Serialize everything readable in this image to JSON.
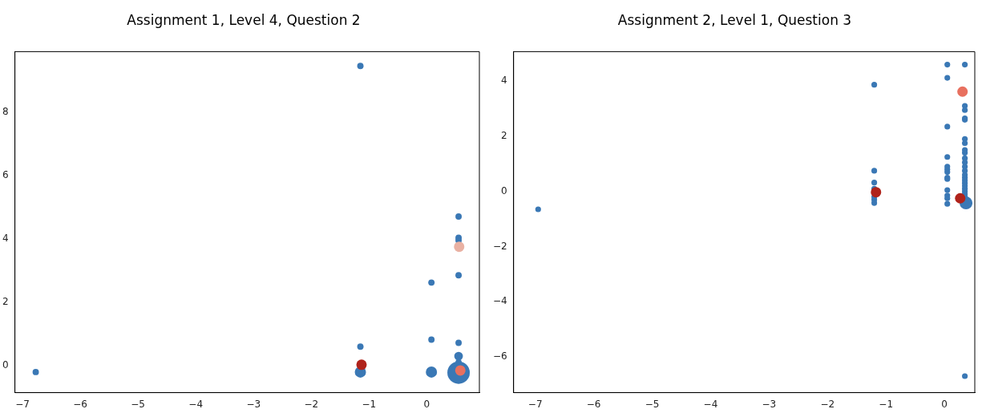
{
  "chart_data": [
    {
      "type": "scatter",
      "title": "Assignment 1, Level 4, Question 2",
      "grid": false,
      "legend": false,
      "marker": "circle",
      "xlim": [
        -7.13,
        0.91
      ],
      "ylim": [
        -0.85,
        9.9
      ],
      "xticks": [
        {
          "value": -7,
          "label": "−7"
        },
        {
          "value": -6,
          "label": "−6"
        },
        {
          "value": -5,
          "label": "−5"
        },
        {
          "value": -4,
          "label": "−4"
        },
        {
          "value": -3,
          "label": "−3"
        },
        {
          "value": -2,
          "label": "−2"
        },
        {
          "value": -1,
          "label": "−1"
        },
        0
      ],
      "yticks": [
        0,
        2,
        4,
        6,
        8
      ],
      "series": [
        {
          "type": "bubble",
          "color": "#3a78b5",
          "x": [
            -6.77,
            -1.15,
            -1.15,
            -1.15,
            0.08,
            0.08,
            0.08,
            0.55,
            0.55,
            0.55,
            0.55,
            0.55,
            0.55,
            0.55,
            0.55
          ],
          "values": [
            -0.2,
            9.45,
            0.6,
            -0.2,
            2.62,
            0.82,
            -0.2,
            4.7,
            4.03,
            3.95,
            2.85,
            0.72,
            0.3,
            0.1,
            -0.22
          ],
          "sizes": [
            0.08,
            0.08,
            0.08,
            0.25,
            0.08,
            0.08,
            0.25,
            0.08,
            0.08,
            0.08,
            0.08,
            0.08,
            0.15,
            0.08,
            1
          ]
        },
        {
          "type": "scatter",
          "x": [
            -1.13,
            0.56,
            0.58
          ],
          "values": [
            0.03,
            3.75,
            -0.15
          ],
          "colors": [
            "#b0231b",
            "#e9b1a3",
            "#e8705f"
          ]
        }
      ]
    },
    {
      "type": "scatter",
      "title": "Assignment 2, Level 1, Question 3",
      "grid": false,
      "legend": false,
      "marker": "circle",
      "xlim": [
        -7.37,
        0.52
      ],
      "ylim": [
        -7.3,
        5.07
      ],
      "xticks": [
        {
          "value": -7,
          "label": "−7"
        },
        {
          "value": -6,
          "label": "−6"
        },
        {
          "value": -5,
          "label": "−5"
        },
        {
          "value": -4,
          "label": "−4"
        },
        {
          "value": -3,
          "label": "−3"
        },
        {
          "value": -2,
          "label": "−2"
        },
        {
          "value": -1,
          "label": "−1"
        },
        0
      ],
      "yticks": [
        {
          "value": -6,
          "label": "−6"
        },
        {
          "value": -4,
          "label": "−4"
        },
        {
          "value": -2,
          "label": "−2"
        },
        0,
        2,
        4
      ],
      "series": [
        {
          "type": "bubble",
          "color": "#3a78b5",
          "x": [
            0.37,
            -6.95,
            -1.2,
            -1.2,
            -1.2,
            -1.2,
            -1.2,
            -1.2,
            -1.2,
            0.05,
            0.05,
            0.05,
            0.05,
            0.05,
            0.05,
            0.05,
            0.05,
            0.05,
            0.05,
            0.05,
            0.05,
            0.05,
            0.35,
            0.35,
            0.35,
            0.35,
            0.35,
            0.35,
            0.35,
            0.35,
            0.35,
            0.35,
            0.35,
            0.35,
            0.35,
            0.35,
            0.35,
            0.35,
            0.35,
            0.35,
            0.35,
            0.35,
            0.35,
            0.35,
            0.35
          ],
          "values": [
            -0.42,
            -0.65,
            3.87,
            0.75,
            0.32,
            0.1,
            -0.2,
            -0.3,
            -0.42,
            4.6,
            4.12,
            2.35,
            1.25,
            0.9,
            0.8,
            0.7,
            0.5,
            0.45,
            0.05,
            -0.15,
            -0.25,
            -0.45,
            4.6,
            3.1,
            2.95,
            2.65,
            2.6,
            1.9,
            1.75,
            1.5,
            1.4,
            1.2,
            1.05,
            0.9,
            0.75,
            0.6,
            0.5,
            0.4,
            0.3,
            0.2,
            0.1,
            0,
            -0.1,
            -0.2,
            -6.7
          ],
          "sizes": [
            1,
            0.2,
            0.2,
            0.2,
            0.2,
            0.2,
            0.2,
            0.2,
            0.2,
            0.2,
            0.2,
            0.2,
            0.2,
            0.2,
            0.2,
            0.2,
            0.2,
            0.2,
            0.2,
            0.2,
            0.2,
            0.2,
            0.2,
            0.2,
            0.2,
            0.2,
            0.2,
            0.2,
            0.2,
            0.2,
            0.2,
            0.2,
            0.2,
            0.2,
            0.2,
            0.2,
            0.2,
            0.2,
            0.2,
            0.2,
            0.2,
            0.2,
            0.2,
            0.2,
            0.2
          ]
        },
        {
          "type": "scatter",
          "x": [
            -1.17,
            0.27,
            0.31
          ],
          "values": [
            -0.03,
            -0.25,
            3.62
          ],
          "colors": [
            "#b0231b",
            "#b0231b",
            "#e8705f"
          ]
        }
      ]
    }
  ]
}
